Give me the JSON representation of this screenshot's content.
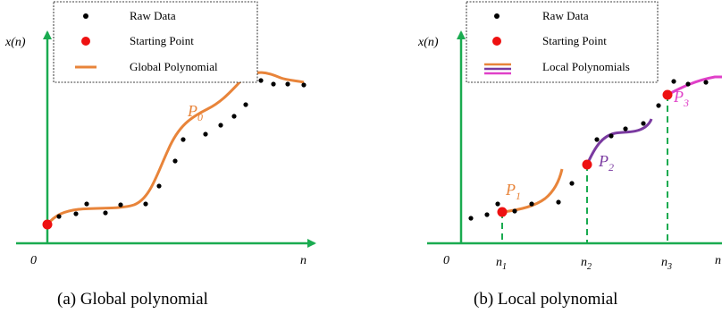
{
  "panel_a": {
    "legend": {
      "raw": "Raw Data",
      "start": "Starting Point",
      "curve": "Global Polynomial"
    },
    "y_label": "x(n)",
    "x_label": "n",
    "origin": "0",
    "poly_label": "P",
    "poly_sub": "0",
    "caption": "(a) Global polynomial"
  },
  "panel_b": {
    "legend": {
      "raw": "Raw Data",
      "start": "Starting Point",
      "curve": "Local Polynomials"
    },
    "y_label": "x(n)",
    "x_label": "n",
    "origin": "0",
    "polys": [
      {
        "label": "P",
        "sub": "1"
      },
      {
        "label": "P",
        "sub": "2"
      },
      {
        "label": "P",
        "sub": "3"
      }
    ],
    "ticks": [
      {
        "label": "n",
        "sub": "1"
      },
      {
        "label": "n",
        "sub": "2"
      },
      {
        "label": "n",
        "sub": "3"
      }
    ],
    "caption": "(b) Local polynomial"
  },
  "colors": {
    "axis": "#1aab50",
    "raw": "#000000",
    "start": "#ee1111",
    "global": "#e8843a",
    "local1": "#e8843a",
    "local2": "#7a3aa0",
    "local3": "#e040c8"
  }
}
